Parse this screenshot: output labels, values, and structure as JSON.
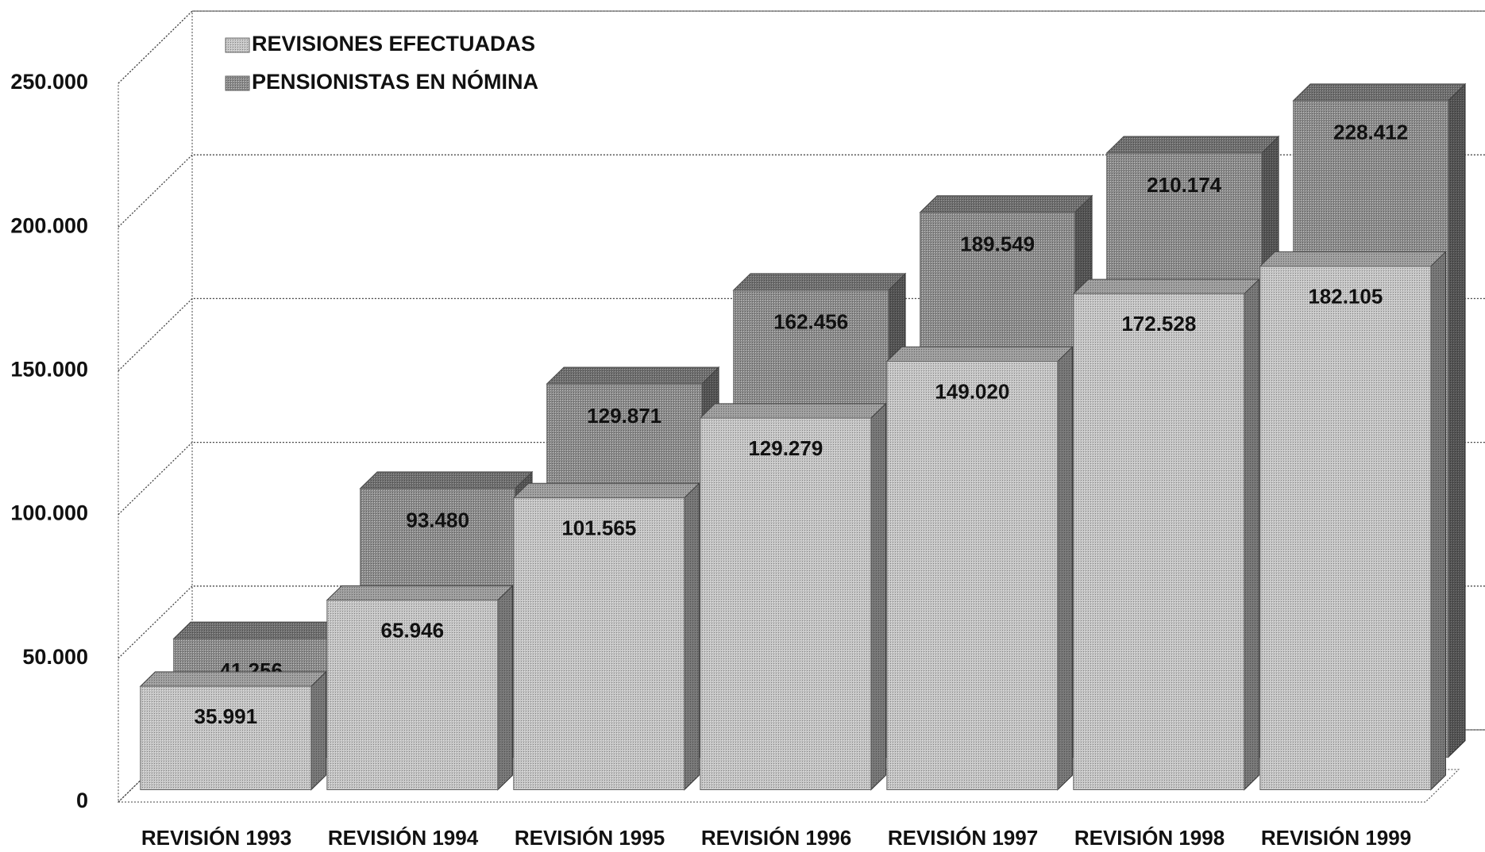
{
  "chart_data": {
    "type": "bar3d",
    "categories": [
      "REVISIÓN 1993",
      "REVISIÓN 1994",
      "REVISIÓN 1995",
      "REVISIÓN 1996",
      "REVISIÓN 1997",
      "REVISIÓN 1998",
      "REVISIÓN 1999"
    ],
    "series": [
      {
        "name": "REVISIONES EFECTUADAS",
        "color": "#c4c4c4",
        "values": [
          35991,
          65946,
          101565,
          129279,
          149020,
          172528,
          182105
        ],
        "value_labels": [
          "35.991",
          "65.946",
          "101.565",
          "129.279",
          "149.020",
          "172.528",
          "182.105"
        ]
      },
      {
        "name": "PENSIONISTAS EN NÓMINA",
        "color": "#8a8a8a",
        "values": [
          41256,
          93480,
          129871,
          162456,
          189549,
          210174,
          228412
        ],
        "value_labels": [
          "41.256",
          "93.480",
          "129.871",
          "162.456",
          "189.549",
          "210.174",
          "228.412"
        ]
      }
    ],
    "ylim": [
      0,
      250000
    ],
    "yticks": [
      0,
      {
        "value": 50000,
        "label": "50.000"
      },
      {
        "value": 100000,
        "label": "100.000"
      },
      {
        "value": 150000,
        "label": "150.000"
      },
      {
        "value": 200000,
        "label": "200.000"
      },
      {
        "value": 250000,
        "label": "250.000"
      }
    ],
    "grid": true
  }
}
